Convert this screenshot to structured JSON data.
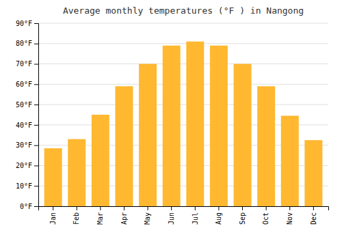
{
  "chart_data": {
    "type": "bar",
    "title": "Average monthly temperatures (°F ) in Nangong",
    "categories": [
      "Jan",
      "Feb",
      "Mar",
      "Apr",
      "May",
      "Jun",
      "Jul",
      "Aug",
      "Sep",
      "Oct",
      "Nov",
      "Dec"
    ],
    "values": [
      28.5,
      33,
      45,
      59,
      70,
      79,
      81,
      79,
      70,
      59,
      44.5,
      32.5
    ],
    "color": "#FFB830",
    "ylim": [
      0,
      90
    ],
    "yticks": [
      {
        "value": 0,
        "label": "0°F"
      },
      {
        "value": 10,
        "label": "10°F"
      },
      {
        "value": 20,
        "label": "20°F"
      },
      {
        "value": 30,
        "label": "30°F"
      },
      {
        "value": 40,
        "label": "40°F"
      },
      {
        "value": 50,
        "label": "50°F"
      },
      {
        "value": 60,
        "label": "60°F"
      },
      {
        "value": 70,
        "label": "70°F"
      },
      {
        "value": 80,
        "label": "80°F"
      },
      {
        "value": 90,
        "label": "90°F"
      }
    ],
    "grid": true
  }
}
